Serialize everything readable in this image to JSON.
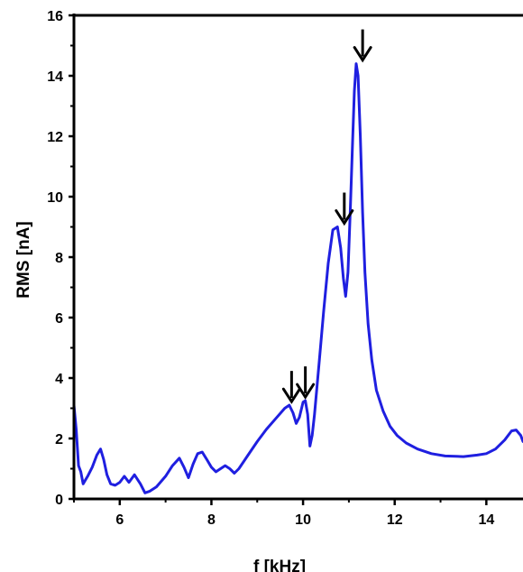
{
  "chart_data": {
    "type": "line",
    "xlabel": "f [kHz]",
    "ylabel": "RMS [nA]",
    "xlim": [
      5.0,
      14.8
    ],
    "ylim": [
      0,
      16
    ],
    "x_ticks": [
      6,
      8,
      10,
      12,
      14
    ],
    "y_ticks": [
      0,
      2,
      4,
      6,
      8,
      10,
      12,
      14,
      16
    ],
    "line_color": "#1f1fe0",
    "arrow_color": "#000000",
    "grid": false,
    "legend": "none",
    "series": [
      {
        "x": [
          5.0,
          5.05,
          5.1,
          5.15,
          5.2,
          5.3,
          5.4,
          5.5,
          5.58,
          5.65,
          5.72,
          5.8,
          5.9,
          6.0,
          6.1,
          6.2,
          6.32,
          6.45,
          6.55,
          6.65,
          6.8,
          7.0,
          7.15,
          7.3,
          7.4,
          7.5,
          7.6,
          7.7,
          7.8,
          7.9,
          8.0,
          8.1,
          8.2,
          8.3,
          8.4,
          8.5,
          8.6,
          8.8,
          9.0,
          9.2,
          9.4,
          9.6,
          9.7,
          9.78,
          9.85,
          9.92,
          10.0,
          10.05,
          10.1,
          10.15,
          10.2,
          10.25,
          10.35,
          10.45,
          10.55,
          10.65,
          10.75,
          10.82,
          10.88,
          10.93,
          10.98,
          11.03,
          11.08,
          11.12,
          11.16,
          11.2,
          11.25,
          11.3,
          11.35,
          11.42,
          11.5,
          11.6,
          11.75,
          11.9,
          12.05,
          12.25,
          12.5,
          12.8,
          13.1,
          13.5,
          13.8,
          14.0,
          14.2,
          14.4,
          14.55,
          14.65,
          14.75,
          14.8
        ],
        "y": [
          3.1,
          2.3,
          1.1,
          0.9,
          0.5,
          0.75,
          1.05,
          1.45,
          1.65,
          1.3,
          0.8,
          0.5,
          0.45,
          0.55,
          0.75,
          0.55,
          0.8,
          0.5,
          0.2,
          0.25,
          0.4,
          0.75,
          1.1,
          1.35,
          1.05,
          0.7,
          1.15,
          1.5,
          1.55,
          1.3,
          1.05,
          0.9,
          1.0,
          1.1,
          1.0,
          0.85,
          1.0,
          1.45,
          1.9,
          2.3,
          2.65,
          3.0,
          3.1,
          2.85,
          2.5,
          2.7,
          3.2,
          3.25,
          2.8,
          1.75,
          2.1,
          2.8,
          4.5,
          6.2,
          7.8,
          8.9,
          9.0,
          8.3,
          7.3,
          6.7,
          7.5,
          9.5,
          11.8,
          13.5,
          14.4,
          14.0,
          12.0,
          9.5,
          7.5,
          5.8,
          4.6,
          3.6,
          2.9,
          2.4,
          2.1,
          1.85,
          1.65,
          1.5,
          1.42,
          1.4,
          1.45,
          1.5,
          1.65,
          1.95,
          2.25,
          2.28,
          2.1,
          1.9
        ]
      }
    ],
    "annotations": [
      {
        "type": "arrow",
        "x": 9.75,
        "y": 3.1
      },
      {
        "type": "arrow",
        "x": 10.05,
        "y": 3.25
      },
      {
        "type": "arrow",
        "x": 10.9,
        "y": 9.0
      },
      {
        "type": "arrow",
        "x": 11.3,
        "y": 14.4
      }
    ]
  }
}
